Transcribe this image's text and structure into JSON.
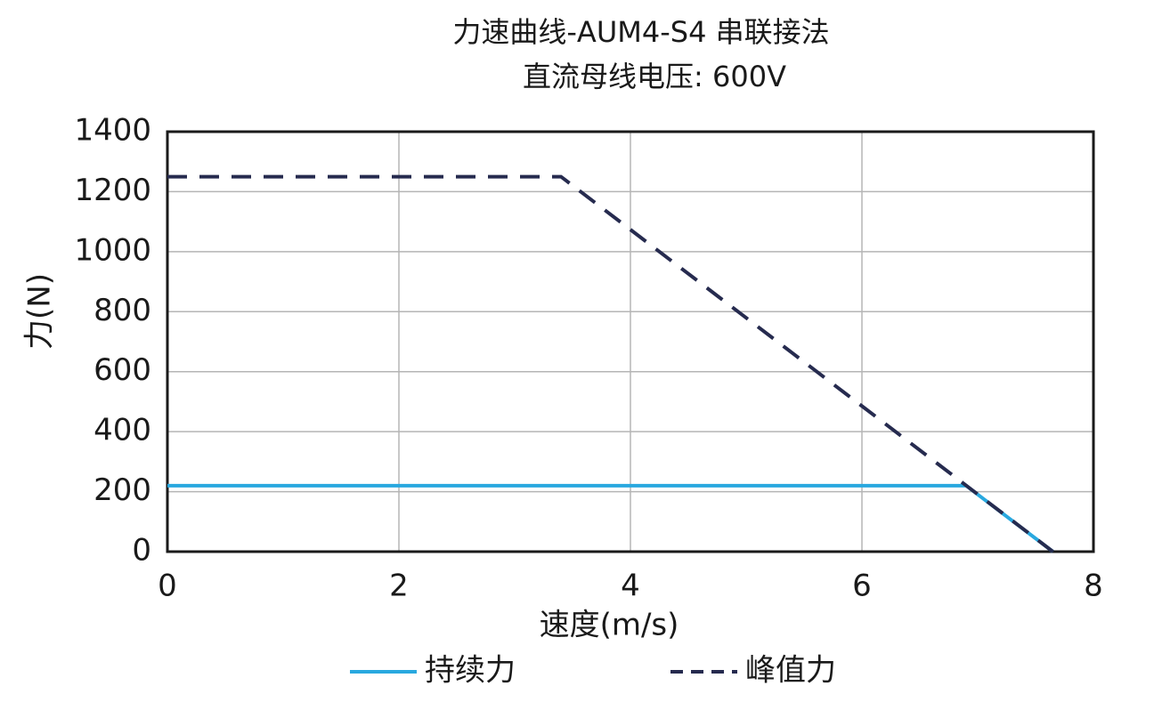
{
  "chart_data": {
    "type": "line",
    "title": "力速曲线-AUM4-S4 串联接法",
    "subtitle": "直流母线电压: 600V",
    "x_label": "速度(m/s)",
    "y_label": "力(N)",
    "xlim": [
      0,
      8
    ],
    "xticks": [
      0,
      2,
      4,
      6,
      8
    ],
    "ylim": [
      0,
      1400
    ],
    "yticks": [
      0,
      200,
      400,
      600,
      800,
      1000,
      1200,
      1400
    ],
    "grid": true,
    "legend": "bottom",
    "series": [
      {
        "name": "持续力",
        "color": "#29a8df",
        "dash": false,
        "x": [
          0,
          6.9,
          7.65
        ],
        "values": [
          220,
          220,
          0
        ]
      },
      {
        "name": "峰值力",
        "color": "#262b4f",
        "dash": true,
        "x": [
          0,
          3.4,
          7.65
        ],
        "values": [
          1250,
          1250,
          0
        ]
      }
    ]
  }
}
